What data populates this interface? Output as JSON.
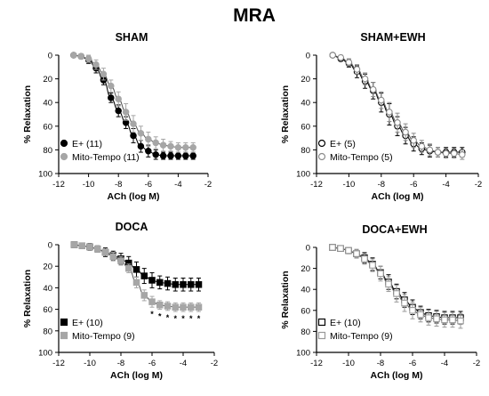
{
  "figure_title": "MRA",
  "chart_data": [
    {
      "type": "line",
      "title": "SHAM",
      "xlabel": "ACh (log M)",
      "ylabel": "% Relaxation",
      "xlim": [
        -12,
        -2
      ],
      "ylim": [
        0,
        100
      ],
      "y_inverted": true,
      "x_ticks": [
        -12,
        -10,
        -8,
        -6,
        -4,
        -2
      ],
      "y_ticks": [
        0,
        20,
        40,
        60,
        80,
        100
      ],
      "x": [
        -11,
        -10.5,
        -10,
        -9.5,
        -9,
        -8.5,
        -8,
        -7.5,
        -7,
        -6.5,
        -6,
        -5.5,
        -5,
        -4.5,
        -4,
        -3.5,
        -3
      ],
      "legend_position": "bottom-left",
      "series": [
        {
          "name": "E+ (11)",
          "marker": "circle",
          "fill": "#000000",
          "stroke": "#000000",
          "values": [
            0,
            1,
            4,
            11,
            21,
            36,
            47,
            57,
            68,
            77,
            81,
            84,
            85,
            85,
            85,
            85,
            85
          ],
          "errors": [
            1,
            2,
            3,
            4,
            4,
            4,
            5,
            5,
            6,
            5,
            5,
            4,
            3,
            3,
            3,
            3,
            3
          ]
        },
        {
          "name": "Mito-Tempo (11)",
          "marker": "circle",
          "fill": "#a6a6a6",
          "stroke": "#a6a6a6",
          "values": [
            0,
            1,
            3,
            8,
            16,
            26,
            37,
            48,
            58,
            66,
            71,
            74,
            76,
            77,
            78,
            78,
            78
          ],
          "errors": [
            1,
            2,
            3,
            4,
            5,
            5,
            6,
            7,
            7,
            6,
            6,
            5,
            5,
            4,
            4,
            4,
            4
          ]
        }
      ]
    },
    {
      "type": "line",
      "title": "SHAM+EWH",
      "xlabel": "ACh (log M)",
      "ylabel": "% Relaxation",
      "xlim": [
        -12,
        -2
      ],
      "ylim": [
        0,
        100
      ],
      "y_inverted": true,
      "x_ticks": [
        -12,
        -10,
        -8,
        -6,
        -4,
        -2
      ],
      "y_ticks": [
        0,
        20,
        40,
        60,
        80,
        100
      ],
      "x": [
        -11,
        -10.5,
        -10,
        -9.5,
        -9,
        -8.5,
        -8,
        -7.5,
        -7,
        -6.5,
        -6,
        -5.5,
        -5,
        -4.5,
        -4,
        -3.5,
        -3
      ],
      "legend_position": "bottom-left",
      "series": [
        {
          "name": "E+ (5)",
          "marker": "circle-open",
          "fill": "#ffffff",
          "stroke": "#000000",
          "values": [
            0,
            3,
            7,
            14,
            22,
            30,
            40,
            50,
            60,
            68,
            75,
            79,
            81,
            82,
            82,
            82,
            82
          ],
          "errors": [
            1,
            2,
            3,
            5,
            6,
            7,
            8,
            9,
            8,
            7,
            6,
            5,
            5,
            4,
            4,
            4,
            4
          ]
        },
        {
          "name": "Mito-Tempo (5)",
          "marker": "circle-open",
          "fill": "#ffffff",
          "stroke": "#8c8c8c",
          "values": [
            0,
            2,
            6,
            12,
            20,
            29,
            38,
            48,
            57,
            65,
            72,
            77,
            80,
            82,
            83,
            83,
            84
          ],
          "errors": [
            1,
            2,
            3,
            4,
            5,
            6,
            7,
            8,
            8,
            7,
            6,
            5,
            5,
            4,
            4,
            4,
            4
          ]
        }
      ]
    },
    {
      "type": "line",
      "title": "DOCA",
      "xlabel": "ACh (log M)",
      "ylabel": "% Relaxation",
      "xlim": [
        -12,
        -2
      ],
      "ylim": [
        0,
        100
      ],
      "y_inverted": true,
      "x_ticks": [
        -12,
        -10,
        -8,
        -6,
        -4,
        -2
      ],
      "y_ticks": [
        0,
        20,
        40,
        60,
        80,
        100
      ],
      "x": [
        -11,
        -10.5,
        -10,
        -9.5,
        -9,
        -8.5,
        -8,
        -7.5,
        -7,
        -6.5,
        -6,
        -5.5,
        -5,
        -4.5,
        -4,
        -3.5,
        -3
      ],
      "legend_position": "bottom-left",
      "annotation_symbol": "*",
      "significance_x": [
        -6,
        -5.5,
        -5,
        -4.5,
        -4,
        -3.5,
        -3
      ],
      "series": [
        {
          "name": "E+ (10)",
          "marker": "square",
          "fill": "#000000",
          "stroke": "#000000",
          "values": [
            0,
            1,
            2,
            4,
            7,
            10,
            13,
            17,
            23,
            29,
            33,
            35,
            36,
            37,
            37,
            37,
            37
          ],
          "errors": [
            1,
            2,
            3,
            3,
            4,
            4,
            5,
            6,
            7,
            7,
            7,
            6,
            6,
            6,
            6,
            6,
            6
          ]
        },
        {
          "name": "Mito-Tempo (9)",
          "marker": "square",
          "fill": "#a6a6a6",
          "stroke": "#a6a6a6",
          "values": [
            0,
            1,
            2,
            4,
            7,
            11,
            15,
            22,
            35,
            47,
            53,
            56,
            57,
            58,
            58,
            58,
            58
          ],
          "errors": [
            1,
            1,
            2,
            3,
            3,
            4,
            4,
            4,
            5,
            5,
            5,
            4,
            4,
            4,
            4,
            4,
            4
          ]
        }
      ]
    },
    {
      "type": "line",
      "title": "DOCA+EWH",
      "xlabel": "ACh (log M)",
      "ylabel": "% Relaxation",
      "xlim": [
        -12,
        -2
      ],
      "ylim": [
        0,
        100
      ],
      "y_inverted": true,
      "x_ticks": [
        -12,
        -10,
        -8,
        -6,
        -4,
        -2
      ],
      "y_ticks": [
        0,
        20,
        40,
        60,
        80,
        100
      ],
      "x": [
        -11,
        -10.5,
        -10,
        -9.5,
        -9,
        -8.5,
        -8,
        -7.5,
        -7,
        -6.5,
        -6,
        -5.5,
        -5,
        -4.5,
        -4,
        -3.5,
        -3
      ],
      "legend_position": "bottom-left",
      "series": [
        {
          "name": "E+ (10)",
          "marker": "square-open",
          "fill": "#ffffff",
          "stroke": "#000000",
          "values": [
            0,
            1,
            3,
            6,
            10,
            16,
            24,
            33,
            42,
            50,
            57,
            62,
            65,
            66,
            67,
            67,
            67
          ],
          "errors": [
            1,
            2,
            3,
            4,
            5,
            6,
            6,
            7,
            7,
            7,
            7,
            6,
            6,
            6,
            6,
            6,
            6
          ]
        },
        {
          "name": "Mito-Tempo (9)",
          "marker": "square-open",
          "fill": "#ffffff",
          "stroke": "#9a9a9a",
          "values": [
            0,
            1,
            3,
            6,
            11,
            17,
            25,
            35,
            44,
            53,
            60,
            64,
            67,
            68,
            69,
            69,
            70
          ],
          "errors": [
            1,
            2,
            3,
            4,
            5,
            6,
            7,
            7,
            8,
            8,
            8,
            7,
            7,
            7,
            7,
            7,
            7
          ]
        }
      ]
    }
  ]
}
